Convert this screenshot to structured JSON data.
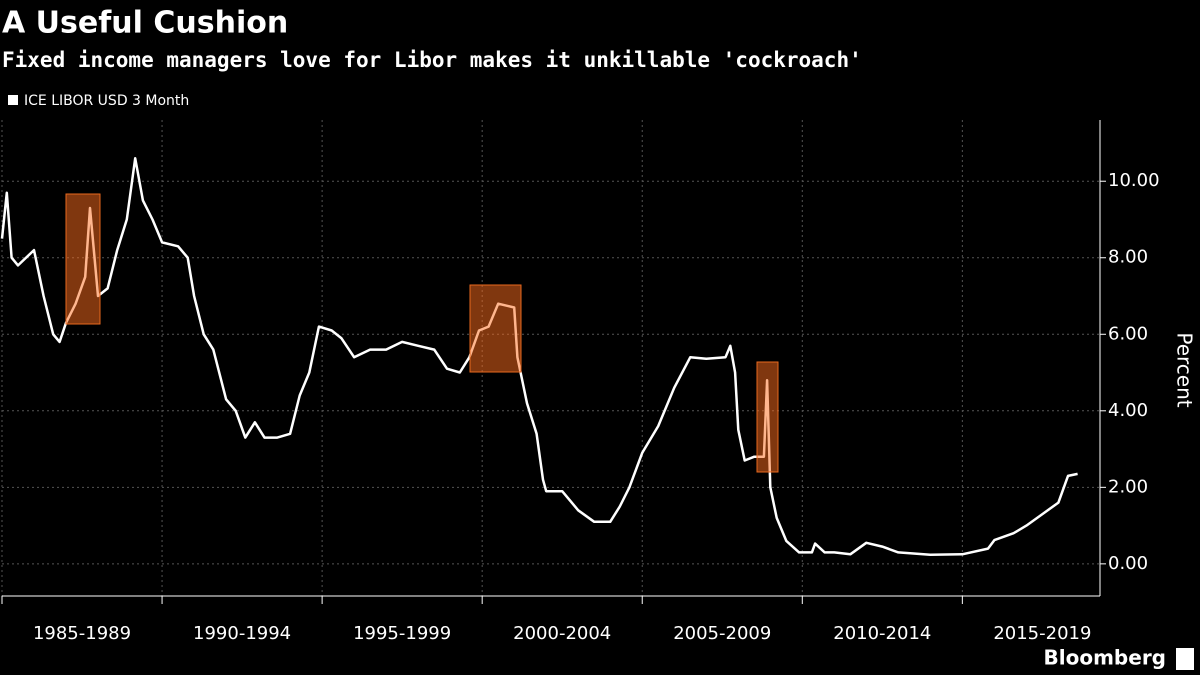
{
  "chart_data": {
    "type": "line",
    "title": "A Useful Cushion",
    "subtitle": "Fixed income managers love for Libor makes it unkillable 'cockroach'",
    "ylabel": "Percent",
    "source": "Bloomberg",
    "legend": "top-left",
    "grid": true,
    "xlim": [
      1985,
      2019.3
    ],
    "xticks": [
      {
        "value": 1985,
        "label": "1985-1989"
      },
      {
        "value": 1990,
        "label": "1990-1994"
      },
      {
        "value": 1995,
        "label": "1995-1999"
      },
      {
        "value": 2000,
        "label": "2000-2004"
      },
      {
        "value": 2005,
        "label": "2005-2009"
      },
      {
        "value": 2010,
        "label": "2010-2014"
      },
      {
        "value": 2015,
        "label": "2015-2019"
      }
    ],
    "ylim": [
      -0.84,
      11.6
    ],
    "yticks": [
      {
        "value": 0,
        "label": "0.00"
      },
      {
        "value": 2,
        "label": "2.00"
      },
      {
        "value": 4,
        "label": "4.00"
      },
      {
        "value": 6,
        "label": "6.00"
      },
      {
        "value": 8,
        "label": "8.00"
      },
      {
        "value": 10,
        "label": "10.00"
      }
    ],
    "x": [
      1985.0,
      1985.15,
      1985.3,
      1985.5,
      1986.0,
      1986.3,
      1986.6,
      1986.8,
      1987.0,
      1987.3,
      1987.6,
      1987.75,
      1988.0,
      1988.3,
      1988.6,
      1988.9,
      1989.16,
      1989.4,
      1989.7,
      1990.0,
      1990.5,
      1990.8,
      1991.0,
      1991.3,
      1991.6,
      1992.0,
      1992.3,
      1992.6,
      1992.9,
      1993.2,
      1993.6,
      1994.0,
      1994.3,
      1994.6,
      1994.9,
      1995.3,
      1995.6,
      1996.0,
      1996.5,
      1997.0,
      1997.5,
      1998.0,
      1998.5,
      1998.9,
      1999.3,
      1999.6,
      1999.9,
      2000.2,
      2000.5,
      2001.0,
      2001.1,
      2001.4,
      2001.7,
      2001.9,
      2002.0,
      2002.5,
      2003.0,
      2003.5,
      2004.0,
      2004.3,
      2004.6,
      2005.0,
      2005.5,
      2006.0,
      2006.5,
      2007.0,
      2007.6,
      2007.75,
      2007.9,
      2008.0,
      2008.2,
      2008.5,
      2008.8,
      2008.9,
      2009.0,
      2009.2,
      2009.5,
      2009.9,
      2010.3,
      2010.4,
      2010.7,
      2011.0,
      2011.5,
      2012.0,
      2012.5,
      2013.0,
      2014.0,
      2015.0,
      2015.8,
      2016.0,
      2016.6,
      2017.0,
      2017.5,
      2018.0,
      2018.3,
      2018.6
    ],
    "series": [
      {
        "name": "ICE LIBOR USD 3 Month",
        "color": "#ffffff",
        "values": [
          8.5,
          9.7,
          8.0,
          7.8,
          8.2,
          7.0,
          6.0,
          5.8,
          6.3,
          6.8,
          7.5,
          9.3,
          7.0,
          7.2,
          8.2,
          9.0,
          10.6,
          9.5,
          9.0,
          8.4,
          8.3,
          8.0,
          7.0,
          6.0,
          5.6,
          4.3,
          4.0,
          3.3,
          3.7,
          3.3,
          3.3,
          3.4,
          4.4,
          5.0,
          6.2,
          6.1,
          5.9,
          5.4,
          5.6,
          5.6,
          5.8,
          5.7,
          5.6,
          5.1,
          5.0,
          5.4,
          6.1,
          6.2,
          6.8,
          6.7,
          5.4,
          4.2,
          3.4,
          2.2,
          1.9,
          1.9,
          1.4,
          1.1,
          1.1,
          1.5,
          2.0,
          2.9,
          3.6,
          4.6,
          5.4,
          5.36,
          5.4,
          5.7,
          5.0,
          3.5,
          2.7,
          2.8,
          2.8,
          4.8,
          2.0,
          1.2,
          0.6,
          0.3,
          0.3,
          0.53,
          0.3,
          0.3,
          0.25,
          0.55,
          0.45,
          0.3,
          0.24,
          0.25,
          0.4,
          0.62,
          0.8,
          1.0,
          1.3,
          1.6,
          2.3,
          2.35
        ]
      }
    ]
  }
}
